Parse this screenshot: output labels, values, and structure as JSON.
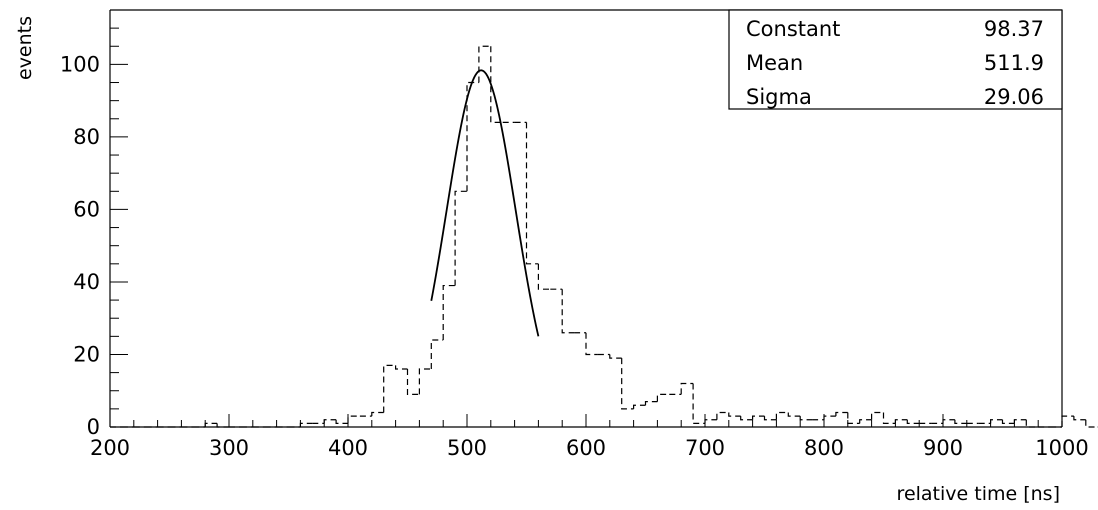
{
  "chart_data": {
    "type": "histogram",
    "xlabel": "relative time [ns]",
    "ylabel": "events",
    "xlim": [
      200,
      1000
    ],
    "ylim": [
      0,
      115
    ],
    "x_ticks": [
      "200",
      "300",
      "400",
      "500",
      "600",
      "700",
      "800",
      "900",
      "1000"
    ],
    "y_ticks": [
      "0",
      "20",
      "40",
      "60",
      "80",
      "100"
    ],
    "grid": false,
    "bin_width": 10,
    "bin_start": 200,
    "histogram_values": [
      0,
      0,
      0,
      0,
      0,
      0,
      0,
      0,
      1,
      0,
      0,
      0,
      0,
      0,
      0,
      0,
      1,
      1,
      2,
      1,
      3,
      3,
      4,
      17,
      16,
      9,
      16,
      24,
      39,
      65,
      95,
      105,
      84,
      84,
      84,
      45,
      38,
      38,
      26,
      26,
      20,
      20,
      19,
      5,
      6,
      7,
      9,
      9,
      12,
      1,
      2,
      4,
      3,
      2,
      3,
      2,
      4,
      3,
      2,
      2,
      3,
      4,
      1,
      2,
      4,
      1,
      2,
      1,
      1,
      1,
      2,
      1,
      1,
      1,
      2,
      1,
      2,
      0,
      0,
      0,
      3,
      2,
      0,
      0,
      0,
      0,
      0,
      0,
      0,
      0
    ],
    "fit": {
      "function": "gaus",
      "x_range": [
        470,
        560
      ],
      "parameters": [
        {
          "name": "Constant",
          "value": "98.37"
        },
        {
          "name": "Mean",
          "value": "511.9"
        },
        {
          "name": "Sigma",
          "value": "29.06"
        }
      ],
      "constant": 98.37,
      "mean": 511.9,
      "sigma": 29.06
    },
    "stats_box_position": "top-right"
  }
}
